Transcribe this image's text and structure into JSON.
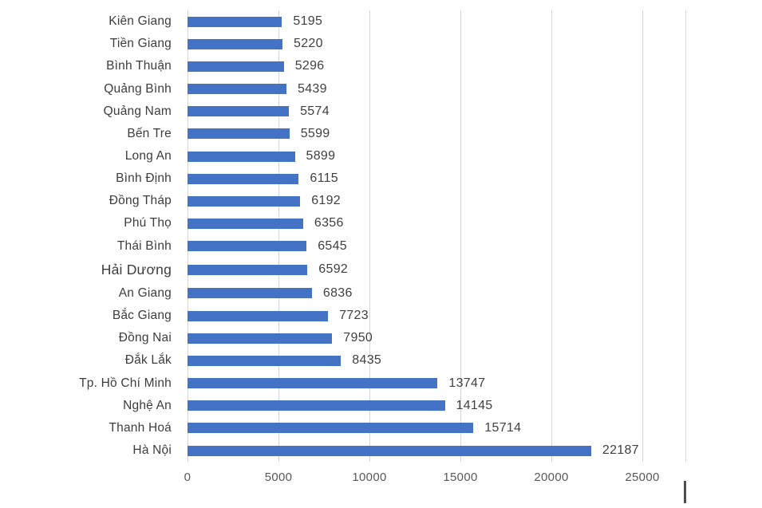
{
  "chart_data": {
    "type": "bar",
    "orientation": "horizontal",
    "title": "",
    "xlabel": "",
    "ylabel": "",
    "categories": [
      "Kiên Giang",
      "Tiền Giang",
      "Bình Thuận",
      "Quảng Bình",
      "Quảng Nam",
      "Bến Tre",
      "Long An",
      "Bình Định",
      "Đồng Tháp",
      "Phú Thọ",
      "Thái Bình",
      "Hải Dương",
      "An Giang",
      "Bắc Giang",
      "Đồng Nai",
      "Đắk Lắk",
      "Tp. Hồ Chí Minh",
      "Nghệ An",
      "Thanh Hoá",
      "Hà Nội"
    ],
    "values": [
      5195,
      5220,
      5296,
      5439,
      5574,
      5599,
      5899,
      6115,
      6192,
      6356,
      6545,
      6592,
      6836,
      7723,
      7950,
      8435,
      13747,
      14145,
      15714,
      22187
    ],
    "data_labels_shown": true,
    "xlim": [
      0,
      25000
    ],
    "x_ticks": [
      "0",
      "5000",
      "10000",
      "15000",
      "20000",
      "25000"
    ],
    "x_tick_values": [
      0,
      5000,
      10000,
      15000,
      20000,
      25000
    ],
    "grid": "vertical-major",
    "legend": "none",
    "bar_color": "#4472C4",
    "gridline_color": "#D6D6D6",
    "label_color": "#3D3D3D",
    "tick_label_color": "#595959"
  }
}
